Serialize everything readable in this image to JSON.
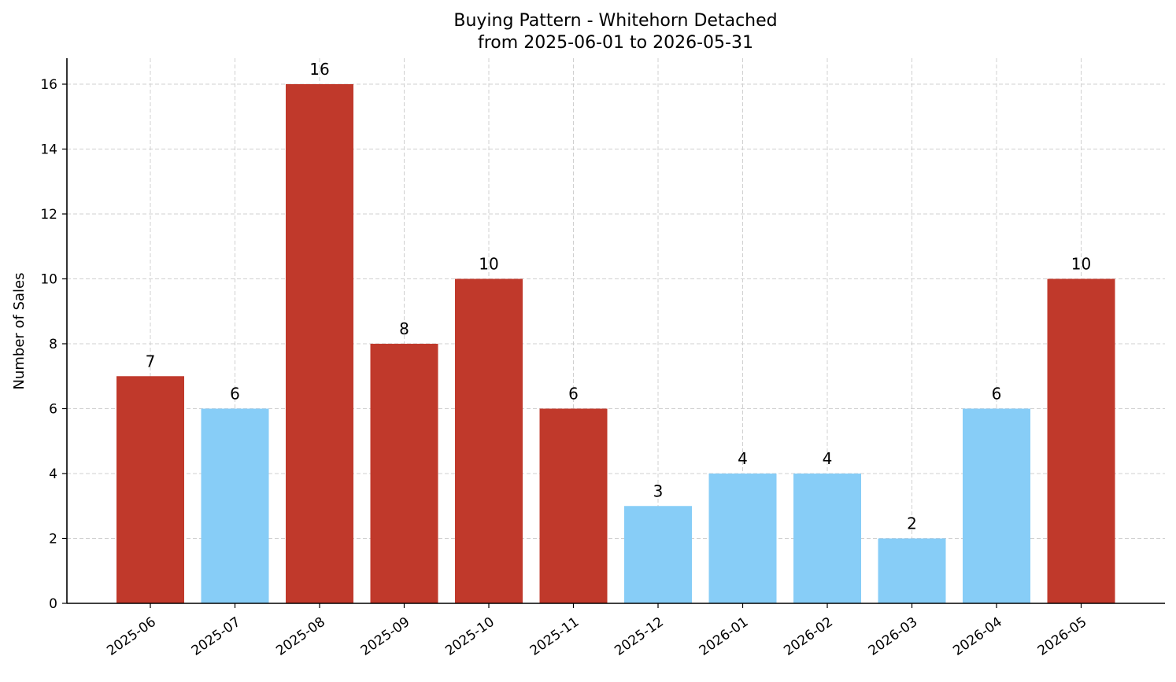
{
  "chart_data": {
    "type": "bar",
    "title": "Buying Pattern - Whitehorn Detached",
    "subtitle": "from 2025-06-01 to 2026-05-31",
    "xlabel": "",
    "ylabel": "Number of Sales",
    "categories": [
      "2025-06",
      "2025-07",
      "2025-08",
      "2025-09",
      "2025-10",
      "2025-11",
      "2025-12",
      "2026-01",
      "2026-02",
      "2026-03",
      "2026-04",
      "2026-05"
    ],
    "values": [
      7,
      6,
      16,
      8,
      10,
      6,
      3,
      4,
      4,
      2,
      6,
      10
    ],
    "bar_colors": [
      "#c0392b",
      "#87cdf7",
      "#c0392b",
      "#c0392b",
      "#c0392b",
      "#c0392b",
      "#87cdf7",
      "#87cdf7",
      "#87cdf7",
      "#87cdf7",
      "#87cdf7",
      "#c0392b"
    ],
    "ylim": [
      0,
      16.8
    ],
    "yticks": [
      0,
      2,
      4,
      6,
      8,
      10,
      12,
      14,
      16
    ],
    "grid": true,
    "data_labels": true
  }
}
